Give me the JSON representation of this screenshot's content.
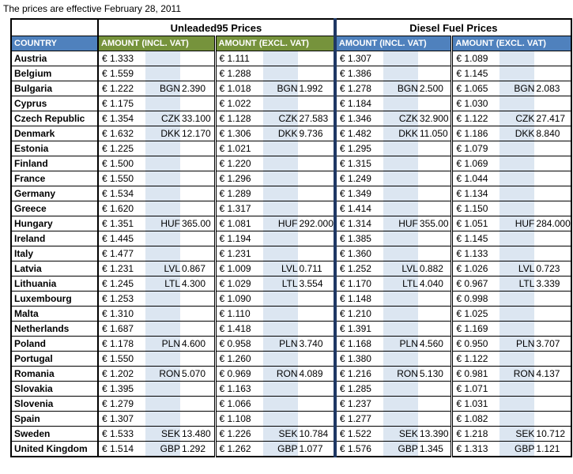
{
  "title": "The prices are effective February 28, 2011",
  "table": {
    "groups": [
      "Unleaded95 Prices",
      "Diesel Fuel Prices"
    ],
    "columns": {
      "country": "COUNTRY",
      "incl": "AMOUNT (INCL. VAT)",
      "excl": "AMOUNT (EXCL. VAT)"
    },
    "colors": {
      "header_blue": "#4F81BD",
      "header_green": "#76933C",
      "stripe_blue": "#DCE6F1",
      "divider_navy": "#1F3864",
      "border_black": "#000000"
    },
    "rows": [
      {
        "country": "Austria",
        "unleaded_incl": {
          "euro": "€ 1.333",
          "cur": "",
          "loc": ""
        },
        "unleaded_excl": {
          "euro": "€ 1.111",
          "cur": "",
          "loc": ""
        },
        "diesel_incl": {
          "euro": "€ 1.307",
          "cur": "",
          "loc": ""
        },
        "diesel_excl": {
          "euro": "€ 1.089",
          "cur": "",
          "loc": ""
        }
      },
      {
        "country": "Belgium",
        "unleaded_incl": {
          "euro": "€ 1.559",
          "cur": "",
          "loc": ""
        },
        "unleaded_excl": {
          "euro": "€ 1.288",
          "cur": "",
          "loc": ""
        },
        "diesel_incl": {
          "euro": "€ 1.386",
          "cur": "",
          "loc": ""
        },
        "diesel_excl": {
          "euro": "€ 1.145",
          "cur": "",
          "loc": ""
        }
      },
      {
        "country": "Bulgaria",
        "unleaded_incl": {
          "euro": "€ 1.222",
          "cur": "BGN",
          "loc": "2.390"
        },
        "unleaded_excl": {
          "euro": "€ 1.018",
          "cur": "BGN",
          "loc": "1.992"
        },
        "diesel_incl": {
          "euro": "€ 1.278",
          "cur": "BGN",
          "loc": "2.500"
        },
        "diesel_excl": {
          "euro": "€ 1.065",
          "cur": "BGN",
          "loc": "2.083"
        }
      },
      {
        "country": "Cyprus",
        "unleaded_incl": {
          "euro": "€ 1.175",
          "cur": "",
          "loc": ""
        },
        "unleaded_excl": {
          "euro": "€ 1.022",
          "cur": "",
          "loc": ""
        },
        "diesel_incl": {
          "euro": "€ 1.184",
          "cur": "",
          "loc": ""
        },
        "diesel_excl": {
          "euro": "€ 1.030",
          "cur": "",
          "loc": ""
        }
      },
      {
        "country": "Czech Republic",
        "unleaded_incl": {
          "euro": "€ 1.354",
          "cur": "CZK",
          "loc": "33.100"
        },
        "unleaded_excl": {
          "euro": "€ 1.128",
          "cur": "CZK",
          "loc": "27.583"
        },
        "diesel_incl": {
          "euro": "€ 1.346",
          "cur": "CZK",
          "loc": "32.900"
        },
        "diesel_excl": {
          "euro": "€ 1.122",
          "cur": "CZK",
          "loc": "27.417"
        }
      },
      {
        "country": "Denmark",
        "unleaded_incl": {
          "euro": "€ 1.632",
          "cur": "DKK",
          "loc": "12.170"
        },
        "unleaded_excl": {
          "euro": "€ 1.306",
          "cur": "DKK",
          "loc": "9.736"
        },
        "diesel_incl": {
          "euro": "€ 1.482",
          "cur": "DKK",
          "loc": "11.050"
        },
        "diesel_excl": {
          "euro": "€ 1.186",
          "cur": "DKK",
          "loc": "8.840"
        }
      },
      {
        "country": "Estonia",
        "unleaded_incl": {
          "euro": "€ 1.225",
          "cur": "",
          "loc": ""
        },
        "unleaded_excl": {
          "euro": "€ 1.021",
          "cur": "",
          "loc": ""
        },
        "diesel_incl": {
          "euro": "€ 1.295",
          "cur": "",
          "loc": ""
        },
        "diesel_excl": {
          "euro": "€ 1.079",
          "cur": "",
          "loc": ""
        }
      },
      {
        "country": "Finland",
        "unleaded_incl": {
          "euro": "€ 1.500",
          "cur": "",
          "loc": ""
        },
        "unleaded_excl": {
          "euro": "€ 1.220",
          "cur": "",
          "loc": ""
        },
        "diesel_incl": {
          "euro": "€ 1.315",
          "cur": "",
          "loc": ""
        },
        "diesel_excl": {
          "euro": "€ 1.069",
          "cur": "",
          "loc": ""
        }
      },
      {
        "country": "France",
        "unleaded_incl": {
          "euro": "€ 1.550",
          "cur": "",
          "loc": ""
        },
        "unleaded_excl": {
          "euro": "€ 1.296",
          "cur": "",
          "loc": ""
        },
        "diesel_incl": {
          "euro": "€ 1.249",
          "cur": "",
          "loc": ""
        },
        "diesel_excl": {
          "euro": "€ 1.044",
          "cur": "",
          "loc": ""
        }
      },
      {
        "country": "Germany",
        "unleaded_incl": {
          "euro": "€ 1.534",
          "cur": "",
          "loc": ""
        },
        "unleaded_excl": {
          "euro": "€ 1.289",
          "cur": "",
          "loc": ""
        },
        "diesel_incl": {
          "euro": "€ 1.349",
          "cur": "",
          "loc": ""
        },
        "diesel_excl": {
          "euro": "€ 1.134",
          "cur": "",
          "loc": ""
        }
      },
      {
        "country": "Greece",
        "unleaded_incl": {
          "euro": "€ 1.620",
          "cur": "",
          "loc": ""
        },
        "unleaded_excl": {
          "euro": "€ 1.317",
          "cur": "",
          "loc": ""
        },
        "diesel_incl": {
          "euro": "€ 1.414",
          "cur": "",
          "loc": ""
        },
        "diesel_excl": {
          "euro": "€ 1.150",
          "cur": "",
          "loc": ""
        }
      },
      {
        "country": "Hungary",
        "unleaded_incl": {
          "euro": "€ 1.351",
          "cur": "HUF",
          "loc": "365.00"
        },
        "unleaded_excl": {
          "euro": "€ 1.081",
          "cur": "HUF",
          "loc": "292.000"
        },
        "diesel_incl": {
          "euro": "€ 1.314",
          "cur": "HUF",
          "loc": "355.00"
        },
        "diesel_excl": {
          "euro": "€ 1.051",
          "cur": "HUF",
          "loc": "284.000"
        }
      },
      {
        "country": "Ireland",
        "unleaded_incl": {
          "euro": "€ 1.445",
          "cur": "",
          "loc": ""
        },
        "unleaded_excl": {
          "euro": "€ 1.194",
          "cur": "",
          "loc": ""
        },
        "diesel_incl": {
          "euro": "€ 1.385",
          "cur": "",
          "loc": ""
        },
        "diesel_excl": {
          "euro": "€ 1.145",
          "cur": "",
          "loc": ""
        }
      },
      {
        "country": "Italy",
        "unleaded_incl": {
          "euro": "€ 1.477",
          "cur": "",
          "loc": ""
        },
        "unleaded_excl": {
          "euro": "€ 1.231",
          "cur": "",
          "loc": ""
        },
        "diesel_incl": {
          "euro": "€ 1.360",
          "cur": "",
          "loc": ""
        },
        "diesel_excl": {
          "euro": "€ 1.133",
          "cur": "",
          "loc": ""
        }
      },
      {
        "country": "Latvia",
        "unleaded_incl": {
          "euro": "€ 1.231",
          "cur": "LVL",
          "loc": "0.867"
        },
        "unleaded_excl": {
          "euro": "€ 1.009",
          "cur": "LVL",
          "loc": "0.711"
        },
        "diesel_incl": {
          "euro": "€ 1.252",
          "cur": "LVL",
          "loc": "0.882"
        },
        "diesel_excl": {
          "euro": "€ 1.026",
          "cur": "LVL",
          "loc": "0.723"
        }
      },
      {
        "country": "Lithuania",
        "unleaded_incl": {
          "euro": "€ 1.245",
          "cur": "LTL",
          "loc": "4.300"
        },
        "unleaded_excl": {
          "euro": "€ 1.029",
          "cur": "LTL",
          "loc": "3.554"
        },
        "diesel_incl": {
          "euro": "€ 1.170",
          "cur": "LTL",
          "loc": "4.040"
        },
        "diesel_excl": {
          "euro": "€ 0.967",
          "cur": "LTL",
          "loc": "3.339"
        }
      },
      {
        "country": "Luxembourg",
        "unleaded_incl": {
          "euro": "€ 1.253",
          "cur": "",
          "loc": ""
        },
        "unleaded_excl": {
          "euro": "€ 1.090",
          "cur": "",
          "loc": ""
        },
        "diesel_incl": {
          "euro": "€ 1.148",
          "cur": "",
          "loc": ""
        },
        "diesel_excl": {
          "euro": "€ 0.998",
          "cur": "",
          "loc": ""
        }
      },
      {
        "country": "Malta",
        "unleaded_incl": {
          "euro": "€ 1.310",
          "cur": "",
          "loc": ""
        },
        "unleaded_excl": {
          "euro": "€ 1.110",
          "cur": "",
          "loc": ""
        },
        "diesel_incl": {
          "euro": "€ 1.210",
          "cur": "",
          "loc": ""
        },
        "diesel_excl": {
          "euro": "€ 1.025",
          "cur": "",
          "loc": ""
        }
      },
      {
        "country": "Netherlands",
        "unleaded_incl": {
          "euro": "€ 1.687",
          "cur": "",
          "loc": ""
        },
        "unleaded_excl": {
          "euro": "€ 1.418",
          "cur": "",
          "loc": ""
        },
        "diesel_incl": {
          "euro": "€ 1.391",
          "cur": "",
          "loc": ""
        },
        "diesel_excl": {
          "euro": "€ 1.169",
          "cur": "",
          "loc": ""
        }
      },
      {
        "country": "Poland",
        "unleaded_incl": {
          "euro": "€ 1.178",
          "cur": "PLN",
          "loc": "4.600"
        },
        "unleaded_excl": {
          "euro": "€ 0.958",
          "cur": "PLN",
          "loc": "3.740"
        },
        "diesel_incl": {
          "euro": "€ 1.168",
          "cur": "PLN",
          "loc": "4.560"
        },
        "diesel_excl": {
          "euro": "€ 0.950",
          "cur": "PLN",
          "loc": "3.707"
        }
      },
      {
        "country": "Portugal",
        "unleaded_incl": {
          "euro": "€ 1.550",
          "cur": "",
          "loc": ""
        },
        "unleaded_excl": {
          "euro": "€ 1.260",
          "cur": "",
          "loc": ""
        },
        "diesel_incl": {
          "euro": "€ 1.380",
          "cur": "",
          "loc": ""
        },
        "diesel_excl": {
          "euro": "€ 1.122",
          "cur": "",
          "loc": ""
        }
      },
      {
        "country": "Romania",
        "unleaded_incl": {
          "euro": "€ 1.202",
          "cur": "RON",
          "loc": "5.070"
        },
        "unleaded_excl": {
          "euro": "€ 0.969",
          "cur": "RON",
          "loc": "4.089"
        },
        "diesel_incl": {
          "euro": "€ 1.216",
          "cur": "RON",
          "loc": "5.130"
        },
        "diesel_excl": {
          "euro": "€ 0.981",
          "cur": "RON",
          "loc": "4.137"
        }
      },
      {
        "country": "Slovakia",
        "unleaded_incl": {
          "euro": "€ 1.395",
          "cur": "",
          "loc": ""
        },
        "unleaded_excl": {
          "euro": "€ 1.163",
          "cur": "",
          "loc": ""
        },
        "diesel_incl": {
          "euro": "€ 1.285",
          "cur": "",
          "loc": ""
        },
        "diesel_excl": {
          "euro": "€ 1.071",
          "cur": "",
          "loc": ""
        }
      },
      {
        "country": "Slovenia",
        "unleaded_incl": {
          "euro": "€ 1.279",
          "cur": "",
          "loc": ""
        },
        "unleaded_excl": {
          "euro": "€ 1.066",
          "cur": "",
          "loc": ""
        },
        "diesel_incl": {
          "euro": "€ 1.237",
          "cur": "",
          "loc": ""
        },
        "diesel_excl": {
          "euro": "€ 1.031",
          "cur": "",
          "loc": ""
        }
      },
      {
        "country": "Spain",
        "unleaded_incl": {
          "euro": "€ 1.307",
          "cur": "",
          "loc": ""
        },
        "unleaded_excl": {
          "euro": "€ 1.108",
          "cur": "",
          "loc": ""
        },
        "diesel_incl": {
          "euro": "€ 1.277",
          "cur": "",
          "loc": ""
        },
        "diesel_excl": {
          "euro": "€ 1.082",
          "cur": "",
          "loc": ""
        }
      },
      {
        "country": "Sweden",
        "unleaded_incl": {
          "euro": "€ 1.533",
          "cur": "SEK",
          "loc": "13.480"
        },
        "unleaded_excl": {
          "euro": "€ 1.226",
          "cur": "SEK",
          "loc": "10.784"
        },
        "diesel_incl": {
          "euro": "€ 1.522",
          "cur": "SEK",
          "loc": "13.390"
        },
        "diesel_excl": {
          "euro": "€ 1.218",
          "cur": "SEK",
          "loc": "10.712"
        }
      },
      {
        "country": "United Kingdom",
        "unleaded_incl": {
          "euro": "€ 1.514",
          "cur": "GBP",
          "loc": "1.292"
        },
        "unleaded_excl": {
          "euro": "€ 1.262",
          "cur": "GBP",
          "loc": "1.077"
        },
        "diesel_incl": {
          "euro": "€ 1.576",
          "cur": "GBP",
          "loc": "1.345"
        },
        "diesel_excl": {
          "euro": "€ 1.313",
          "cur": "GBP",
          "loc": "1.121"
        }
      }
    ]
  }
}
